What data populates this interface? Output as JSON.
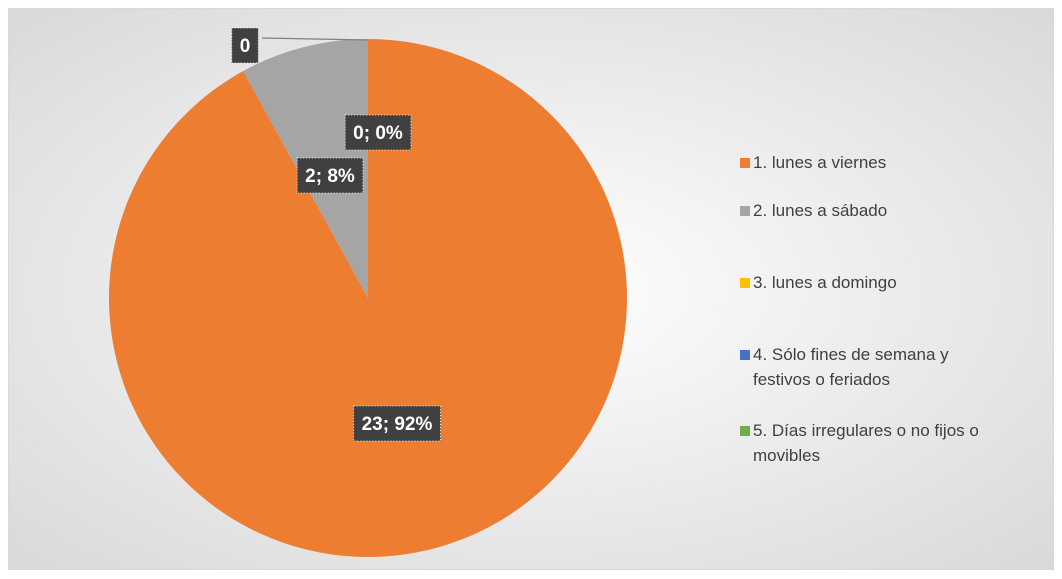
{
  "chart_data": {
    "type": "pie",
    "categories": [
      "1. lunes a viernes",
      "2. lunes a sábado",
      "3. lunes a domingo",
      "4. Sólo fines de semana y festivos o feriados",
      "5. Días irregulares o no fijos o movibles"
    ],
    "values": [
      23,
      2,
      0,
      0,
      0
    ],
    "value_labels": [
      "23; 92%",
      "2; 8%",
      "0; 0%",
      "0",
      null
    ],
    "colors": [
      "#ED7D31",
      "#A5A5A5",
      "#FFC000",
      "#4472C4",
      "#70AD47"
    ],
    "legend": "right"
  }
}
